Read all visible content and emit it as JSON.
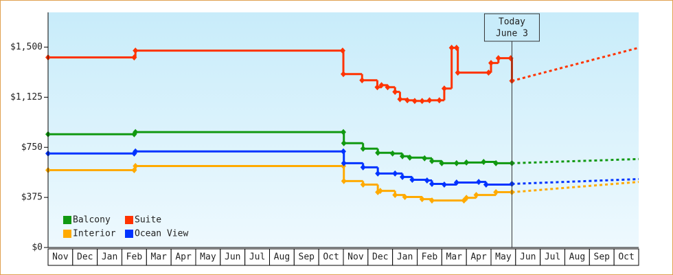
{
  "chart_data": {
    "type": "step-line",
    "categories": [
      "Nov",
      "Dec",
      "Jan",
      "Feb",
      "Mar",
      "Apr",
      "May",
      "Jun",
      "Jul",
      "Aug",
      "Sep",
      "Oct",
      "Nov",
      "Dec",
      "Jan",
      "Feb",
      "Mar",
      "Apr",
      "May",
      "Jun",
      "Jul",
      "Aug",
      "Sep",
      "Oct"
    ],
    "xlim": [
      0,
      24
    ],
    "ylim": [
      0,
      1760
    ],
    "yticks": [
      {
        "value": 0,
        "label": "$0"
      },
      {
        "value": 375,
        "label": "$375"
      },
      {
        "value": 750,
        "label": "$750"
      },
      {
        "value": 1125,
        "label": "$1,125"
      },
      {
        "value": 1500,
        "label": "$1,500"
      }
    ],
    "annotation": {
      "lines": [
        "Today",
        "June 3"
      ],
      "x": 18.85
    },
    "series": [
      {
        "name": "Balcony",
        "color": "#119911",
        "x": [
          0,
          3.5,
          3.55,
          12.0,
          12.02,
          12.8,
          13.4,
          14.0,
          14.4,
          14.7,
          15.3,
          15.6,
          16.0,
          16.6,
          17.0,
          17.7,
          18.2,
          18.85
        ],
        "values": [
          848,
          848,
          864,
          864,
          781,
          740,
          709,
          704,
          683,
          673,
          668,
          647,
          631,
          631,
          636,
          641,
          631,
          631
        ],
        "forecast": {
          "x": [
            18.85,
            24
          ],
          "values": [
            631,
            662
          ]
        }
      },
      {
        "name": "Suite",
        "color": "#ff3300",
        "x": [
          0,
          3.5,
          3.55,
          11.97,
          12.0,
          12.76,
          13.38,
          13.55,
          13.8,
          14.1,
          14.3,
          14.6,
          14.9,
          15.2,
          15.5,
          15.9,
          16.1,
          16.4,
          16.6,
          16.65,
          17.9,
          18.0,
          18.3,
          18.8,
          18.85
        ],
        "values": [
          1423,
          1423,
          1474,
          1474,
          1298,
          1252,
          1200,
          1215,
          1200,
          1165,
          1110,
          1102,
          1097,
          1097,
          1102,
          1102,
          1190,
          1495,
          1495,
          1309,
          1309,
          1381,
          1417,
          1417,
          1247
        ],
        "forecast": {
          "x": [
            18.85,
            24
          ],
          "values": [
            1247,
            1495
          ]
        }
      },
      {
        "name": "Interior",
        "color": "#ffaa00",
        "x": [
          0,
          3.5,
          3.55,
          12.0,
          12.02,
          12.8,
          13.4,
          13.5,
          14.1,
          14.5,
          15.2,
          15.6,
          16.9,
          17.0,
          17.4,
          18.2,
          18.85
        ],
        "values": [
          579,
          579,
          610,
          610,
          497,
          471,
          414,
          424,
          393,
          378,
          362,
          352,
          352,
          372,
          393,
          414,
          414
        ],
        "forecast": {
          "x": [
            18.85,
            24
          ],
          "values": [
            414,
            491
          ]
        }
      },
      {
        "name": "Ocean View",
        "color": "#0033ff",
        "x": [
          0,
          3.5,
          3.55,
          12.0,
          12.02,
          12.8,
          13.4,
          14.1,
          14.4,
          14.8,
          15.4,
          15.6,
          16.1,
          16.6,
          17.5,
          17.8,
          18.85
        ],
        "values": [
          704,
          704,
          719,
          719,
          631,
          600,
          554,
          554,
          528,
          507,
          502,
          476,
          471,
          486,
          491,
          471,
          476
        ],
        "forecast": {
          "x": [
            18.85,
            24
          ],
          "values": [
            476,
            512
          ]
        }
      }
    ]
  }
}
